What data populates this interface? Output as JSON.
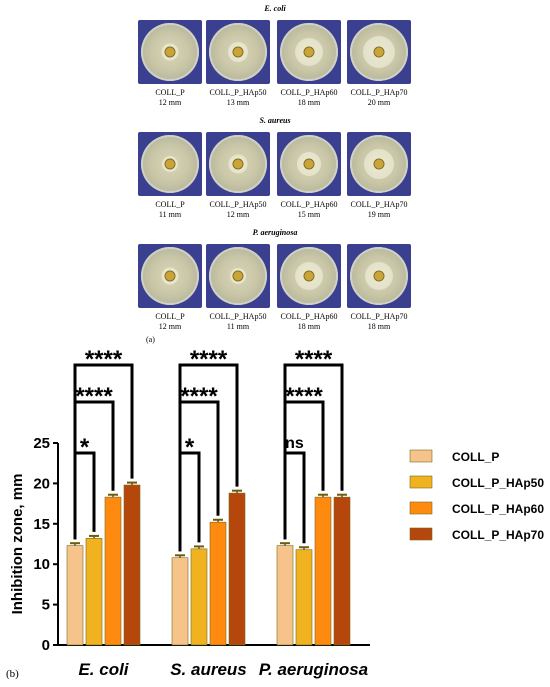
{
  "panel_a": {
    "label": "(a)",
    "rows": [
      {
        "organism": "E. coli",
        "items": [
          {
            "name": "COLL_P",
            "zone": "12 mm",
            "halo": 0.3
          },
          {
            "name": "COLL_P_HAp50",
            "zone": "13 mm",
            "halo": 0.34
          },
          {
            "name": "COLL_P_HAp60",
            "zone": "18 mm",
            "halo": 0.48
          },
          {
            "name": "COLL_P_HAp70",
            "zone": "20 mm",
            "halo": 0.55
          }
        ]
      },
      {
        "organism": "S. aureus",
        "items": [
          {
            "name": "COLL_P",
            "zone": "11 mm",
            "halo": 0.28
          },
          {
            "name": "COLL_P_HAp50",
            "zone": "12 mm",
            "halo": 0.32
          },
          {
            "name": "COLL_P_HAp60",
            "zone": "15 mm",
            "halo": 0.42
          },
          {
            "name": "COLL_P_HAp70",
            "zone": "19 mm",
            "halo": 0.52
          }
        ]
      },
      {
        "organism": "P. aeruginosa",
        "items": [
          {
            "name": "COLL_P",
            "zone": "12 mm",
            "halo": 0.3
          },
          {
            "name": "COLL_P_HAp50",
            "zone": "11 mm",
            "halo": 0.28
          },
          {
            "name": "COLL_P_HAp60",
            "zone": "18 mm",
            "halo": 0.48
          },
          {
            "name": "COLL_P_HAp70",
            "zone": "18 mm",
            "halo": 0.48
          }
        ]
      }
    ]
  },
  "chart_data": {
    "type": "bar",
    "panel_label": "(b)",
    "ylabel": "Inhibition zone, mm",
    "ylim": [
      0,
      25
    ],
    "yticks": [
      0,
      5,
      10,
      15,
      20,
      25
    ],
    "categories": [
      "E. coli",
      "S. aureus",
      "P. aeruginosa"
    ],
    "series": [
      {
        "name": "COLL_P",
        "color": "#f6c48a",
        "values": [
          12.3,
          10.8,
          12.3
        ],
        "errors": [
          0.3,
          0.3,
          0.3
        ]
      },
      {
        "name": "COLL_P_HAp50",
        "color": "#f0b21e",
        "values": [
          13.2,
          11.9,
          11.8
        ],
        "errors": [
          0.3,
          0.3,
          0.3
        ]
      },
      {
        "name": "COLL_P_HAp60",
        "color": "#ff8a10",
        "values": [
          18.3,
          15.2,
          18.3
        ],
        "errors": [
          0.3,
          0.3,
          0.3
        ]
      },
      {
        "name": "COLL_P_HAp70",
        "color": "#b5470c",
        "values": [
          19.8,
          18.8,
          18.3
        ],
        "errors": [
          0.3,
          0.3,
          0.3
        ]
      }
    ],
    "significance": [
      {
        "category": 0,
        "compare": 1,
        "label": "*"
      },
      {
        "category": 0,
        "compare": 2,
        "label": "****"
      },
      {
        "category": 0,
        "compare": 3,
        "label": "****"
      },
      {
        "category": 1,
        "compare": 1,
        "label": "*"
      },
      {
        "category": 1,
        "compare": 2,
        "label": "****"
      },
      {
        "category": 1,
        "compare": 3,
        "label": "****"
      },
      {
        "category": 2,
        "compare": 1,
        "label": "ns"
      },
      {
        "category": 2,
        "compare": 2,
        "label": "****"
      },
      {
        "category": 2,
        "compare": 3,
        "label": "****"
      }
    ],
    "legend_position": "right",
    "grid": false
  }
}
